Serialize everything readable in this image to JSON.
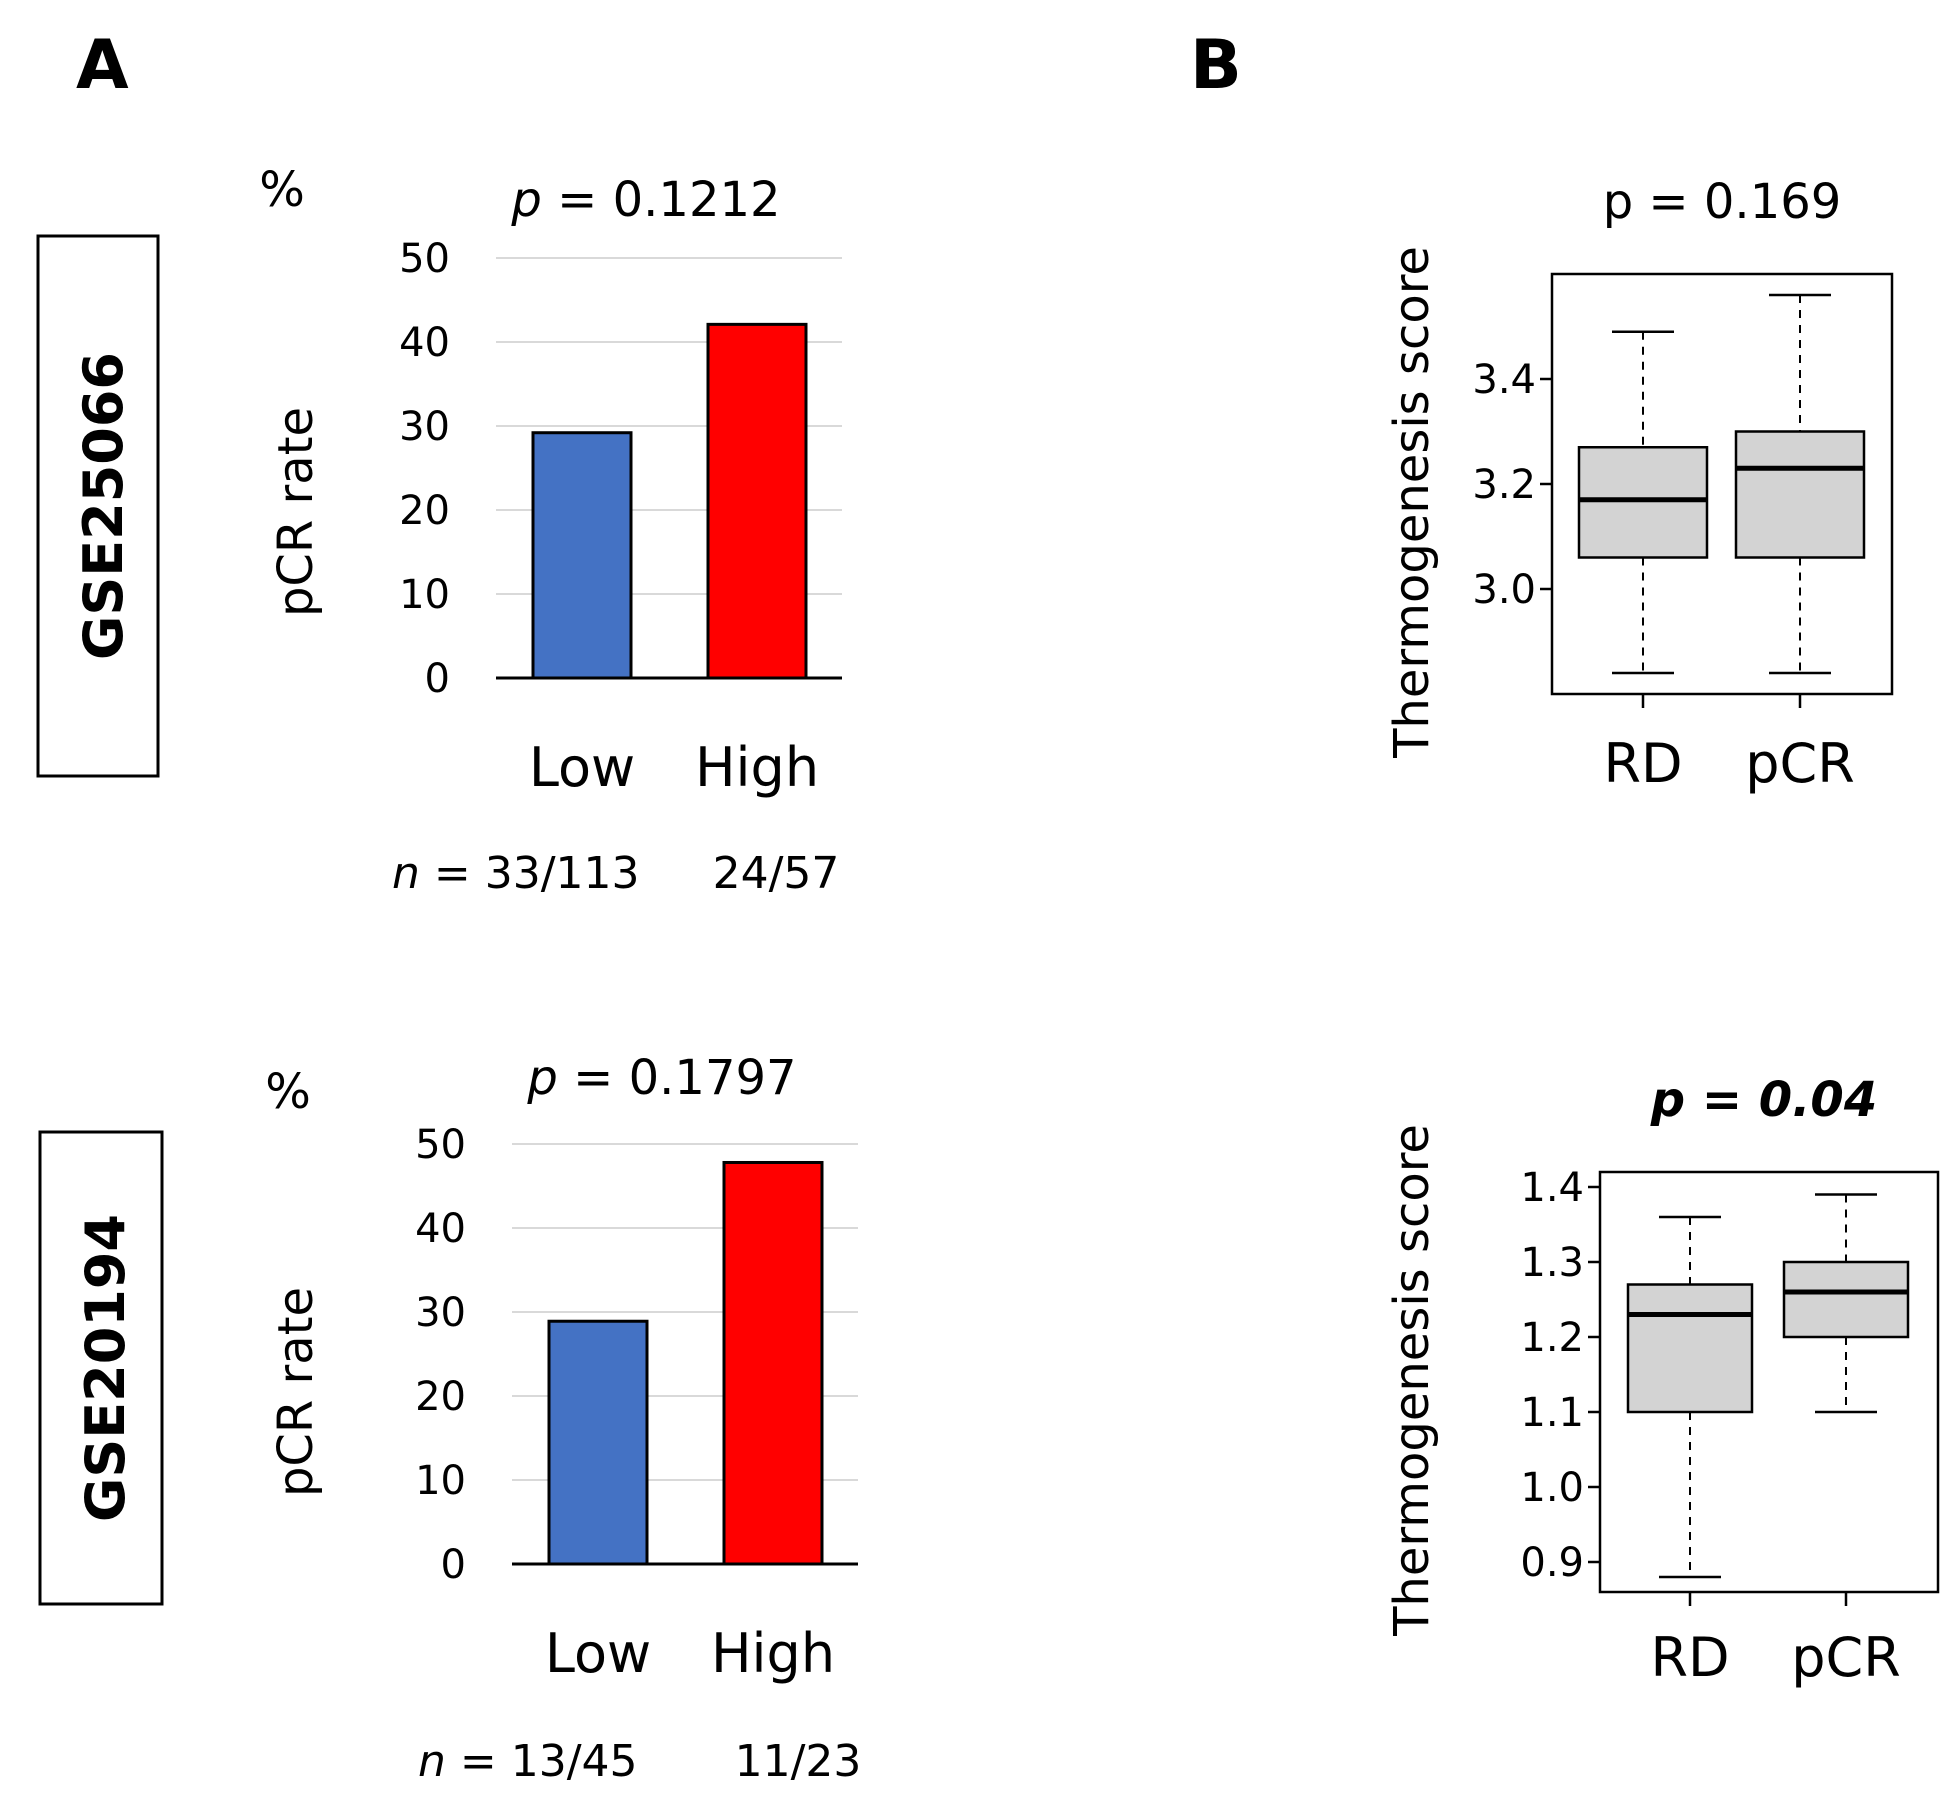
{
  "panel_labels": {
    "a": "A",
    "b": "B"
  },
  "datasets": [
    "GSE25066",
    "GSE20194"
  ],
  "chart_data": [
    {
      "type": "bar",
      "dataset": "GSE25066",
      "title": {
        "p_symbol": "p",
        "p_text": " = 0.1212"
      },
      "unit_label": "%",
      "ylabel": "pCR rate",
      "ylim": [
        0,
        50
      ],
      "yticks": [
        0,
        10,
        20,
        30,
        40,
        50
      ],
      "categories": [
        "Low",
        "High"
      ],
      "values": [
        29.2,
        42.1
      ],
      "colors": [
        "#4472C4",
        "#FF0000"
      ],
      "n_symbol": "n",
      "n_labels": [
        " = 33/113",
        "24/57"
      ]
    },
    {
      "type": "bar",
      "dataset": "GSE20194",
      "title": {
        "p_symbol": "p",
        "p_text": " = 0.1797"
      },
      "unit_label": "%",
      "ylabel": "pCR rate",
      "ylim": [
        0,
        50
      ],
      "yticks": [
        0,
        10,
        20,
        30,
        40,
        50
      ],
      "categories": [
        "Low",
        "High"
      ],
      "values": [
        28.9,
        47.8
      ],
      "colors": [
        "#4472C4",
        "#FF0000"
      ],
      "n_symbol": "n",
      "n_labels": [
        " = 13/45",
        "11/23"
      ]
    },
    {
      "type": "boxplot",
      "dataset": "GSE25066",
      "title": "p = 0.169",
      "title_bold": false,
      "ylabel": "Thermogenesis score",
      "ylim": [
        2.8,
        3.6
      ],
      "yticks": [
        3.0,
        3.2,
        3.4
      ],
      "tick_labels": [
        "3.0",
        "3.2",
        "3.4"
      ],
      "categories": [
        "RD",
        "pCR"
      ],
      "boxes": [
        {
          "whisker_low": 2.84,
          "q1": 3.06,
          "median": 3.17,
          "q3": 3.27,
          "whisker_high": 3.49
        },
        {
          "whisker_low": 2.84,
          "q1": 3.06,
          "median": 3.23,
          "q3": 3.3,
          "whisker_high": 3.56
        }
      ]
    },
    {
      "type": "boxplot",
      "dataset": "GSE20194",
      "title": "p = 0.04",
      "title_bold": true,
      "ylabel": "Thermogenesis score",
      "ylim": [
        0.86,
        1.42
      ],
      "yticks": [
        0.9,
        1.0,
        1.1,
        1.2,
        1.3,
        1.4
      ],
      "tick_labels": [
        "0.9",
        "1.0",
        "1.1",
        "1.2",
        "1.3",
        "1.4"
      ],
      "categories": [
        "RD",
        "pCR"
      ],
      "boxes": [
        {
          "whisker_low": 0.88,
          "q1": 1.1,
          "median": 1.23,
          "q3": 1.27,
          "whisker_high": 1.36
        },
        {
          "whisker_low": 1.1,
          "q1": 1.2,
          "median": 1.26,
          "q3": 1.3,
          "whisker_high": 1.39
        }
      ]
    }
  ]
}
